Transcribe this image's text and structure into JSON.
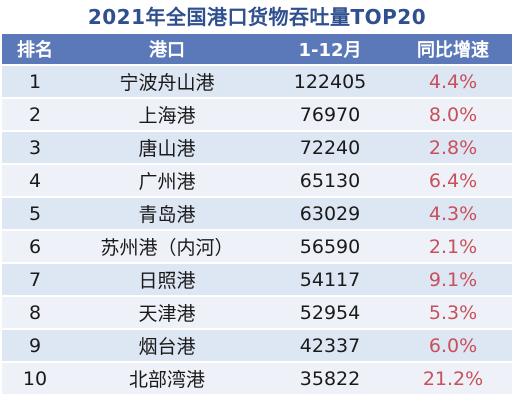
{
  "title": "2021年全国港口货物吞吐量TOP20",
  "headers": [
    "排名",
    "港口",
    "1-12月",
    "同比增速"
  ],
  "rows": [
    {
      "rank": "1",
      "port": "宁波舟山港",
      "value": "122405",
      "growth": "4.4%"
    },
    {
      "rank": "2",
      "port": "上海港",
      "value": "76970",
      "growth": "8.0%"
    },
    {
      "rank": "3",
      "port": "唐山港",
      "value": "72240",
      "growth": "2.8%"
    },
    {
      "rank": "4",
      "port": "广州港",
      "value": "65130",
      "growth": "6.4%"
    },
    {
      "rank": "5",
      "port": "青岛港",
      "value": "63029",
      "growth": "4.3%"
    },
    {
      "rank": "6",
      "port": "苏州港（内河）",
      "value": "56590",
      "growth": "2.1%"
    },
    {
      "rank": "7",
      "port": "日照港",
      "value": "54117",
      "growth": "9.1%"
    },
    {
      "rank": "8",
      "port": "天津港",
      "value": "52954",
      "growth": "5.3%"
    },
    {
      "rank": "9",
      "port": "烟台港",
      "value": "42337",
      "growth": "6.0%"
    },
    {
      "rank": "10",
      "port": "北部湾港",
      "value": "35822",
      "growth": "21.2%"
    }
  ],
  "colors": {
    "title": "#2f4f8f",
    "header_bg": "#5b78b8",
    "row_odd": "#dde6f3",
    "row_even": "#eef2f8",
    "growth_text": "#c8505b"
  },
  "chart_data": {
    "type": "table",
    "title": "2021年全国港口货物吞吐量TOP20",
    "columns": [
      "排名",
      "港口",
      "1-12月",
      "同比增速"
    ],
    "rows": [
      [
        1,
        "宁波舟山港",
        122405,
        "4.4%"
      ],
      [
        2,
        "上海港",
        76970,
        "8.0%"
      ],
      [
        3,
        "唐山港",
        72240,
        "2.8%"
      ],
      [
        4,
        "广州港",
        65130,
        "6.4%"
      ],
      [
        5,
        "青岛港",
        63029,
        "4.3%"
      ],
      [
        6,
        "苏州港（内河）",
        56590,
        "2.1%"
      ],
      [
        7,
        "日照港",
        54117,
        "9.1%"
      ],
      [
        8,
        "天津港",
        52954,
        "5.3%"
      ],
      [
        9,
        "烟台港",
        42337,
        "6.0%"
      ],
      [
        10,
        "北部湾港",
        35822,
        "21.2%"
      ]
    ]
  }
}
